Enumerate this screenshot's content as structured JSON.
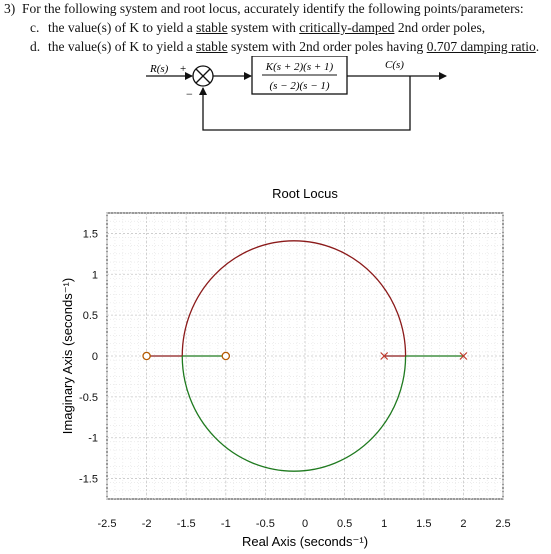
{
  "question": {
    "number": "3)",
    "stem": "For the following system and root locus, accurately identify the following points/parameters:",
    "parts": [
      {
        "label": "c.",
        "text_before": "the value(s) of K to yield a ",
        "u1": "stable",
        "text_mid": " system with ",
        "u2": "critically-damped",
        "text_after": " 2nd order poles,"
      },
      {
        "label": "d.",
        "text_before": "the value(s) of K to yield a ",
        "u1": "stable",
        "text_mid": " system with 2nd order poles having ",
        "u2": "0.707 damping ratio",
        "text_after": "."
      }
    ]
  },
  "block_diagram": {
    "input_label": "R(s)",
    "output_label": "C(s)",
    "sum_plus": "+",
    "sum_minus": "−",
    "tf_numerator": "K(s + 2)(s + 1)",
    "tf_denominator": "(s − 2)(s − 1)"
  },
  "chart_data": {
    "type": "scatter",
    "title": "Root Locus",
    "xlabel": "Real Axis (seconds⁻¹)",
    "ylabel": "Imaginary Axis (seconds⁻¹)",
    "xlim": [
      -2.5,
      2.5
    ],
    "ylim": [
      -1.75,
      1.75
    ],
    "xticks": [
      -2.5,
      -2,
      -1.5,
      -1,
      -0.5,
      0,
      0.5,
      1,
      1.5,
      2,
      2.5
    ],
    "yticks": [
      -1.5,
      -1,
      -0.5,
      0,
      0.5,
      1,
      1.5
    ],
    "xtick_labels": [
      "-2.5",
      "-2",
      "-1.5",
      "-1",
      "-0.5",
      "0",
      "0.5",
      "1",
      "1.5",
      "2",
      "2.5"
    ],
    "ytick_labels": [
      "-1.5",
      "-1",
      "-0.5",
      "0",
      "0.5",
      "1",
      "1.5"
    ],
    "grid": true,
    "poles": [
      [
        1,
        0
      ],
      [
        2,
        0
      ]
    ],
    "zeros": [
      [
        -2,
        0
      ],
      [
        -1,
        0
      ]
    ],
    "locus_circle": {
      "center": [
        -0.14,
        0
      ],
      "radius": 1.41
    },
    "real_axis_segments": [
      [
        -2,
        -1.55
      ],
      [
        -1.55,
        -1
      ],
      [
        1,
        1.27
      ],
      [
        1.27,
        2
      ]
    ],
    "colors": {
      "upper_branch": "#8b1a1a",
      "lower_branch": "#1f7a1f",
      "pole": "#c0392b",
      "zero": "#b35900",
      "grid": "#c8c8c8"
    }
  }
}
